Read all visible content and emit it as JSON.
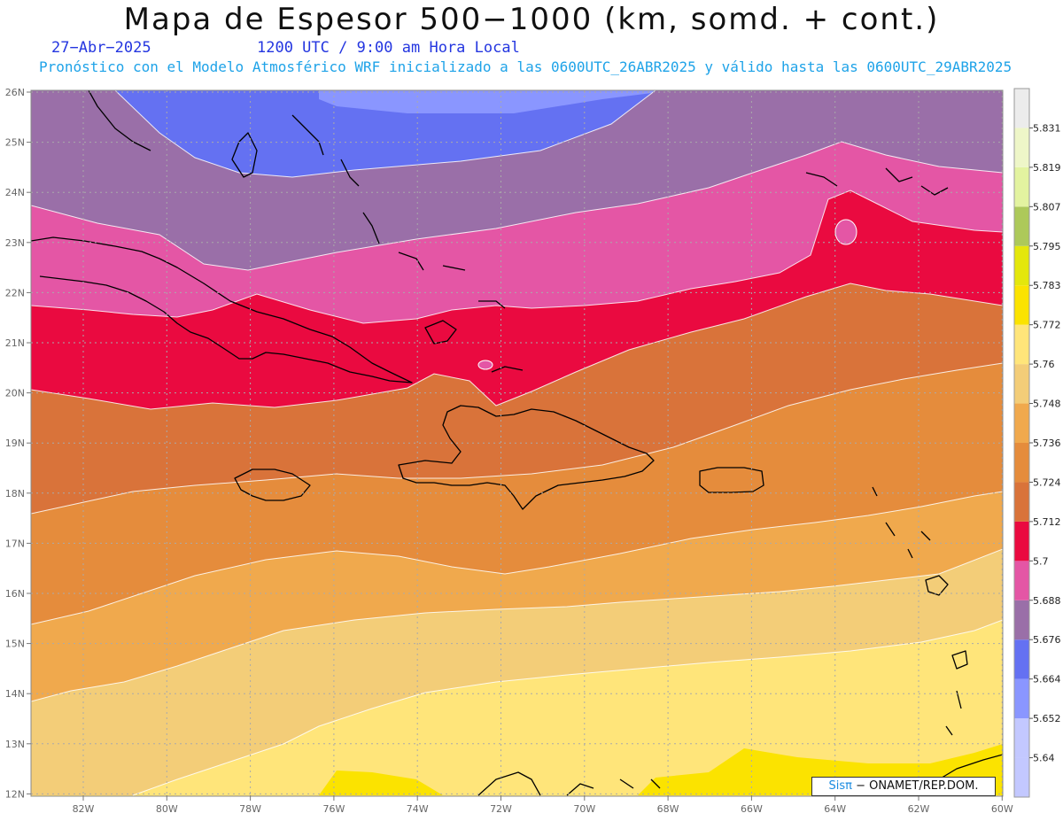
{
  "header": {
    "title": "Mapa de Espesor 500−1000 (km, somd. + cont.)",
    "date": "27−Abr−2025",
    "time": "1200 UTC / 9:00 am Hora Local",
    "subtitle": "Pronóstico con el Modelo Atmosférico WRF inicializado a las 0600UTC_26ABR2025 y válido hasta las  0600UTC_29ABR2025"
  },
  "map": {
    "lat_labels": [
      "26N",
      "25N",
      "24N",
      "23N",
      "22N",
      "21N",
      "20N",
      "19N",
      "18N",
      "17N",
      "16N",
      "15N",
      "14N",
      "13N",
      "12N"
    ],
    "lon_labels": [
      "82W",
      "80W",
      "78W",
      "76W",
      "74W",
      "72W",
      "70W",
      "68W",
      "66W",
      "64W",
      "62W",
      "60W"
    ],
    "bands": [
      {
        "level": "5.64",
        "color": "#c3c8ff"
      },
      {
        "level": "5.652",
        "color": "#8a96ff"
      },
      {
        "level": "5.664",
        "color": "#6471f2"
      },
      {
        "level": "5.676",
        "color": "#9a6fa8"
      },
      {
        "level": "5.688",
        "color": "#e456a5"
      },
      {
        "level": "5.7",
        "color": "#ea0a40"
      },
      {
        "level": "5.712",
        "color": "#d9733a"
      },
      {
        "level": "5.724",
        "color": "#e58c3c"
      },
      {
        "level": "5.736",
        "color": "#f0a94d"
      },
      {
        "level": "5.748",
        "color": "#f3cd78"
      },
      {
        "level": "5.76",
        "color": "#ffe57a"
      },
      {
        "level": "5.772",
        "color": "#fbe300"
      },
      {
        "level": "5.783",
        "color": "#e4e70c"
      },
      {
        "level": "5.795",
        "color": "#adc95a"
      },
      {
        "level": "5.807",
        "color": "#e3f3a0"
      },
      {
        "level": "5.819",
        "color": "#eef6c8"
      },
      {
        "level": "5.831",
        "color": "#ececec"
      }
    ]
  },
  "colorbar": {
    "labels": [
      "5.64",
      "5.652",
      "5.664",
      "5.676",
      "5.688",
      "5.7",
      "5.712",
      "5.724",
      "5.736",
      "5.748",
      "5.76",
      "5.772",
      "5.783",
      "5.795",
      "5.807",
      "5.819",
      "5.831"
    ]
  },
  "credit": {
    "logo": "Sisπ",
    "text": "− ONAMET/REP.DOM."
  }
}
